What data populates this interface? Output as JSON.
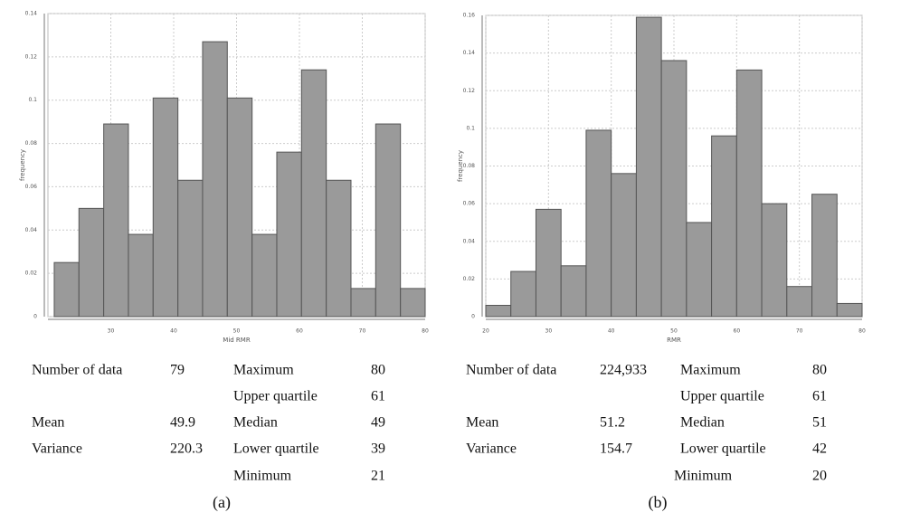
{
  "chart_data": [
    {
      "type": "histogram",
      "xlabel": "Mid RMR",
      "ylabel": "frequency",
      "color": "#9a9a9a",
      "grid": true,
      "bins": [
        21,
        24.93,
        28.87,
        32.8,
        36.73,
        40.67,
        44.6,
        48.53,
        52.47,
        56.4,
        60.33,
        64.27,
        68.2,
        72.13,
        76.07,
        80
      ],
      "values": [
        0.025,
        0.05,
        0.089,
        0.038,
        0.101,
        0.063,
        0.127,
        0.101,
        0.038,
        0.076,
        0.114,
        0.063,
        0.013,
        0.089,
        0.013
      ],
      "xlim": [
        20,
        80
      ],
      "xticks": [
        30,
        40,
        50,
        60,
        70,
        80
      ],
      "ylim": [
        0,
        0.14
      ],
      "yticks": [
        0,
        0.02,
        0.04,
        0.06,
        0.08,
        0.1,
        0.12,
        0.14
      ]
    },
    {
      "type": "histogram",
      "xlabel": "RMR",
      "ylabel": "frequency",
      "color": "#9a9a9a",
      "grid": true,
      "bins": [
        20,
        24,
        28,
        32,
        36,
        40,
        44,
        48,
        52,
        56,
        60,
        64,
        68,
        72,
        76,
        80
      ],
      "values": [
        0.006,
        0.024,
        0.057,
        0.027,
        0.099,
        0.076,
        0.159,
        0.136,
        0.05,
        0.096,
        0.131,
        0.06,
        0.016,
        0.065,
        0.007
      ],
      "xlim": [
        20,
        80
      ],
      "xticks": [
        20,
        30,
        40,
        50,
        60,
        70,
        80
      ],
      "ylim": [
        0,
        0.16
      ],
      "yticks": [
        0,
        0.02,
        0.04,
        0.06,
        0.08,
        0.1,
        0.12,
        0.14,
        0.16
      ]
    }
  ],
  "tables": [
    {
      "rows": [
        [
          "Number of data",
          "79",
          "Maximum",
          "80"
        ],
        [
          null,
          null,
          "Upper quartile",
          "61"
        ],
        [
          "Mean",
          "49.9",
          "Median",
          "49"
        ],
        [
          "Variance",
          "220.3",
          "Lower quartile",
          "39"
        ],
        [
          null,
          null,
          "Minimum",
          "21"
        ]
      ],
      "caption": "(a)"
    },
    {
      "rows": [
        [
          "Number of data",
          "224,933",
          "Maximum",
          "80"
        ],
        [
          null,
          null,
          "Upper quartile",
          "61"
        ],
        [
          "Mean",
          "51.2",
          "Median",
          "51"
        ],
        [
          "Variance",
          "154.7",
          "Lower quartile",
          "42"
        ],
        [
          null,
          null,
          "Minimum",
          "20"
        ]
      ],
      "caption": "(b)"
    }
  ]
}
